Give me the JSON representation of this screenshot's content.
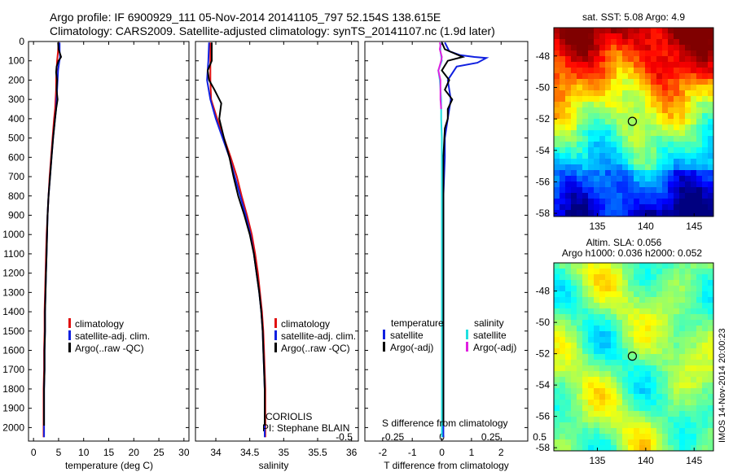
{
  "title_line1": "Argo profile: IF 6900929_111 05-Nov-2014 20141105_797 52.154S 138.615E",
  "title_line2": "Climatology: CARS2009. Satellite-adjusted climatology: synTS_20141107.nc (1.9d later)",
  "colors": {
    "climatology": "#e01010",
    "satellite": "#1020e0",
    "argo": "#000000",
    "sal_satellite": "#20e0e0",
    "sal_argo": "#e020e0"
  },
  "legend_labels": {
    "climatology": "climatology",
    "satellite": "satellite-adj. clim.",
    "argo": "Argo(..raw -QC)"
  },
  "diff_legend": {
    "temperature_header": "temperature",
    "salinity_header": "salinity",
    "satellite": "satellite",
    "argo": "Argo(-adj)"
  },
  "credits": {
    "center": "CORIOLIS",
    "pi": "PI: Stephane BLAIN"
  },
  "diff_top_label": "S difference from climatology",
  "map_sst_title": "sat. SST: 5.08 Argo: 4.9",
  "map_sla_title1": "Altim. SLA: 0.056",
  "map_sla_title2": "Argo h1000: 0.036 h2000: 0.052",
  "timestamp": "IMOS 14-Nov-2014 20:00:23",
  "chart_data": [
    {
      "type": "line",
      "name": "temperature profile",
      "xlabel": "temperature (deg C)",
      "xlim": [
        -1,
        31
      ],
      "ylim": [
        2070,
        0
      ],
      "x_ticks": [
        0,
        5,
        10,
        15,
        20,
        25,
        30
      ],
      "y_ticks": [
        0,
        100,
        200,
        300,
        400,
        500,
        600,
        700,
        800,
        900,
        1000,
        1100,
        1200,
        1300,
        1400,
        1500,
        1600,
        1700,
        1800,
        1900,
        2000
      ],
      "series": [
        {
          "name": "climatology",
          "color_key": "climatology",
          "points": [
            [
              5.0,
              5
            ],
            [
              4.9,
              50
            ],
            [
              4.7,
              100
            ],
            [
              4.6,
              150
            ],
            [
              4.5,
              200
            ],
            [
              4.5,
              250
            ],
            [
              4.4,
              300
            ],
            [
              4.3,
              350
            ],
            [
              4.1,
              400
            ],
            [
              3.8,
              500
            ],
            [
              3.5,
              600
            ],
            [
              3.2,
              700
            ],
            [
              3.0,
              800
            ],
            [
              2.8,
              900
            ],
            [
              2.6,
              1000
            ],
            [
              2.5,
              1100
            ],
            [
              2.4,
              1200
            ],
            [
              2.3,
              1300
            ],
            [
              2.2,
              1400
            ],
            [
              2.2,
              1500
            ],
            [
              2.1,
              1600
            ],
            [
              2.1,
              1700
            ],
            [
              2.0,
              1800
            ],
            [
              2.0,
              1900
            ],
            [
              2.0,
              2000
            ],
            [
              2.0,
              2050
            ]
          ]
        },
        {
          "name": "satellite-adj. clim.",
          "color_key": "satellite",
          "points": [
            [
              5.2,
              5
            ],
            [
              5.2,
              50
            ],
            [
              5.3,
              80
            ],
            [
              5.1,
              110
            ],
            [
              4.9,
              150
            ],
            [
              4.8,
              200
            ],
            [
              4.7,
              250
            ],
            [
              4.6,
              300
            ],
            [
              4.5,
              350
            ],
            [
              4.3,
              400
            ],
            [
              3.9,
              500
            ],
            [
              3.6,
              600
            ],
            [
              3.3,
              700
            ],
            [
              3.0,
              800
            ],
            [
              2.8,
              900
            ],
            [
              2.7,
              1000
            ],
            [
              2.6,
              1100
            ],
            [
              2.5,
              1200
            ],
            [
              2.4,
              1300
            ],
            [
              2.3,
              1400
            ],
            [
              2.3,
              1500
            ],
            [
              2.2,
              1600
            ],
            [
              2.2,
              1700
            ],
            [
              2.1,
              1800
            ],
            [
              2.1,
              1900
            ],
            [
              2.1,
              2000
            ],
            [
              2.1,
              2050
            ]
          ]
        },
        {
          "name": "Argo(..raw -QC)",
          "color_key": "argo",
          "points": [
            [
              4.9,
              5
            ],
            [
              5.0,
              40
            ],
            [
              5.5,
              80
            ],
            [
              5.0,
              100
            ],
            [
              4.6,
              130
            ],
            [
              4.5,
              160
            ],
            [
              4.7,
              200
            ],
            [
              4.6,
              250
            ],
            [
              4.8,
              300
            ],
            [
              4.5,
              350
            ],
            [
              4.3,
              400
            ],
            [
              3.9,
              500
            ],
            [
              3.6,
              600
            ],
            [
              3.3,
              700
            ],
            [
              3.0,
              800
            ],
            [
              2.8,
              900
            ],
            [
              2.7,
              1000
            ],
            [
              2.6,
              1100
            ],
            [
              2.5,
              1200
            ],
            [
              2.4,
              1300
            ],
            [
              2.3,
              1400
            ],
            [
              2.3,
              1500
            ],
            [
              2.2,
              1600
            ],
            [
              2.2,
              1700
            ],
            [
              2.1,
              1800
            ],
            [
              2.1,
              1900
            ],
            [
              2.1,
              1990
            ]
          ]
        }
      ]
    },
    {
      "type": "line",
      "name": "salinity profile",
      "xlabel": "salinity",
      "xlim": [
        33.7,
        36.1
      ],
      "ylim": [
        2070,
        0
      ],
      "x_ticks": [
        34,
        34.5,
        35,
        35.5,
        36
      ],
      "series": [
        {
          "name": "climatology",
          "color_key": "climatology",
          "points": [
            [
              33.92,
              5
            ],
            [
              33.92,
              100
            ],
            [
              33.92,
              200
            ],
            [
              33.93,
              300
            ],
            [
              34.02,
              400
            ],
            [
              34.12,
              500
            ],
            [
              34.22,
              600
            ],
            [
              34.31,
              700
            ],
            [
              34.38,
              800
            ],
            [
              34.46,
              900
            ],
            [
              34.53,
              1000
            ],
            [
              34.58,
              1100
            ],
            [
              34.62,
              1200
            ],
            [
              34.65,
              1300
            ],
            [
              34.68,
              1400
            ],
            [
              34.7,
              1500
            ],
            [
              34.71,
              1600
            ],
            [
              34.72,
              1700
            ],
            [
              34.73,
              1800
            ],
            [
              34.73,
              1900
            ],
            [
              34.73,
              2000
            ],
            [
              34.73,
              2050
            ]
          ]
        },
        {
          "name": "satellite-adj. clim.",
          "color_key": "satellite",
          "points": [
            [
              33.9,
              5
            ],
            [
              33.89,
              100
            ],
            [
              33.87,
              200
            ],
            [
              33.92,
              300
            ],
            [
              34.0,
              400
            ],
            [
              34.1,
              500
            ],
            [
              34.2,
              600
            ],
            [
              34.28,
              700
            ],
            [
              34.36,
              800
            ],
            [
              34.44,
              900
            ],
            [
              34.51,
              1000
            ],
            [
              34.56,
              1100
            ],
            [
              34.6,
              1200
            ],
            [
              34.64,
              1300
            ],
            [
              34.67,
              1400
            ],
            [
              34.69,
              1500
            ],
            [
              34.7,
              1600
            ],
            [
              34.71,
              1700
            ],
            [
              34.72,
              1800
            ],
            [
              34.72,
              1900
            ],
            [
              34.72,
              2000
            ],
            [
              34.72,
              2050
            ]
          ]
        },
        {
          "name": "Argo(..raw -QC)",
          "color_key": "argo",
          "points": [
            [
              33.94,
              5
            ],
            [
              33.94,
              100
            ],
            [
              33.88,
              150
            ],
            [
              33.9,
              200
            ],
            [
              33.98,
              250
            ],
            [
              34.08,
              320
            ],
            [
              34.05,
              400
            ],
            [
              34.12,
              500
            ],
            [
              34.2,
              600
            ],
            [
              34.26,
              700
            ],
            [
              34.33,
              800
            ],
            [
              34.42,
              900
            ],
            [
              34.5,
              1000
            ],
            [
              34.56,
              1100
            ],
            [
              34.6,
              1200
            ],
            [
              34.64,
              1300
            ],
            [
              34.67,
              1400
            ],
            [
              34.69,
              1500
            ],
            [
              34.7,
              1600
            ],
            [
              34.71,
              1700
            ],
            [
              34.72,
              1800
            ],
            [
              34.72,
              1900
            ],
            [
              34.72,
              1990
            ]
          ]
        }
      ]
    },
    {
      "type": "line",
      "name": "difference from climatology",
      "xlabel": "T difference from climatology",
      "xlim_T": [
        -2.6,
        2.9
      ],
      "x_ticks_T": [
        -2,
        -1,
        0,
        1,
        2
      ],
      "x_ticks_S": [
        -0.5,
        -0.25,
        0,
        0.25,
        0.5
      ],
      "ylim": [
        2070,
        0
      ],
      "series": [
        {
          "name": "temperature satellite",
          "color_key": "satellite",
          "points": [
            [
              0.1,
              5
            ],
            [
              0.25,
              50
            ],
            [
              0.6,
              70
            ],
            [
              1.1,
              80
            ],
            [
              1.5,
              85
            ],
            [
              1.2,
              110
            ],
            [
              0.5,
              130
            ],
            [
              0.2,
              200
            ],
            [
              0.3,
              300
            ],
            [
              0.2,
              400
            ],
            [
              0.1,
              500
            ],
            [
              0.1,
              600
            ],
            [
              0.05,
              800
            ],
            [
              0.05,
              1000
            ],
            [
              0.05,
              1200
            ],
            [
              0.05,
              1500
            ],
            [
              0.05,
              1800
            ],
            [
              0.05,
              2050
            ]
          ]
        },
        {
          "name": "temperature Argo(-adj)",
          "color_key": "argo",
          "points": [
            [
              0.0,
              5
            ],
            [
              0.1,
              40
            ],
            [
              0.7,
              80
            ],
            [
              0.2,
              100
            ],
            [
              0.0,
              150
            ],
            [
              0.25,
              200
            ],
            [
              0.1,
              250
            ],
            [
              0.35,
              300
            ],
            [
              0.2,
              350
            ],
            [
              0.2,
              400
            ],
            [
              0.1,
              450
            ],
            [
              0.05,
              600
            ],
            [
              0.05,
              800
            ],
            [
              0.05,
              1000
            ],
            [
              0.05,
              1200
            ],
            [
              0.05,
              1500
            ],
            [
              0.05,
              1800
            ],
            [
              0.05,
              1990
            ]
          ]
        },
        {
          "name": "salinity satellite",
          "color_key": "sal_satellite",
          "points": [
            [
              -0.02,
              5
            ],
            [
              -0.02,
              50
            ],
            [
              0.0,
              100
            ],
            [
              -0.05,
              150
            ],
            [
              -0.03,
              200
            ],
            [
              -0.01,
              300
            ],
            [
              -0.01,
              400
            ],
            [
              0.0,
              500
            ],
            [
              0.0,
              700
            ],
            [
              0.0,
              1000
            ],
            [
              0.0,
              1300
            ],
            [
              0.0,
              1600
            ],
            [
              0.0,
              2050
            ]
          ]
        },
        {
          "name": "salinity Argo(-adj)",
          "color_key": "sal_argo",
          "points": [
            [
              -0.03,
              5
            ],
            [
              -0.02,
              20
            ],
            [
              -0.03,
              40
            ],
            [
              0.0,
              80
            ],
            [
              -0.01,
              100
            ],
            [
              -0.05,
              150
            ],
            [
              -0.02,
              200
            ],
            [
              -0.02,
              250
            ],
            [
              -0.02,
              300
            ],
            [
              -0.01,
              350
            ]
          ]
        }
      ]
    }
  ],
  "map_sst": {
    "x_ticks": [
      135,
      140,
      145
    ],
    "y_ticks": [
      -48,
      -50,
      -52,
      -54,
      -56,
      -58
    ],
    "xlim": [
      130.5,
      147
    ],
    "ylim": [
      -58.2,
      -46.2
    ],
    "float_position": [
      138.615,
      -52.154
    ]
  },
  "map_sla": {
    "x_ticks": [
      135,
      140,
      145
    ],
    "y_ticks": [
      -48,
      -50,
      -52,
      -54,
      -56,
      -58
    ],
    "xlim": [
      130.5,
      147
    ],
    "ylim": [
      -58.2,
      -46.2
    ],
    "float_position": [
      138.615,
      -52.154
    ]
  }
}
